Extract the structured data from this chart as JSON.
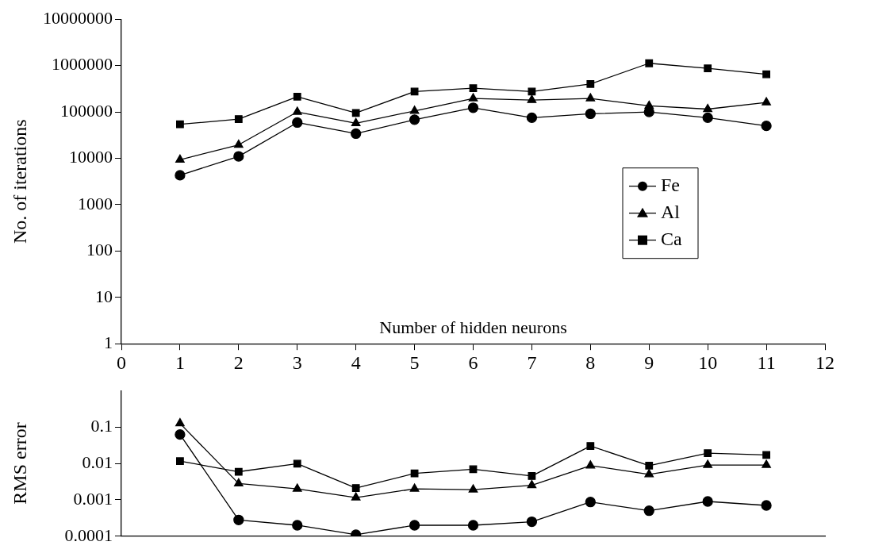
{
  "chart_data": [
    {
      "type": "line",
      "xlabel": "Number of hidden neurons",
      "ylabel": "No. of iterations",
      "x": [
        1,
        2,
        3,
        4,
        5,
        6,
        7,
        8,
        9,
        10,
        11
      ],
      "xlim": [
        0,
        12
      ],
      "xticks": [
        0,
        1,
        2,
        3,
        4,
        5,
        6,
        7,
        8,
        9,
        10,
        11,
        12
      ],
      "ylim": [
        1,
        10000000
      ],
      "yticks": [
        1,
        10,
        100,
        1000,
        10000,
        100000,
        1000000,
        10000000
      ],
      "log": "y",
      "grid": false,
      "legend": "right",
      "line_style": "solid",
      "series": [
        {
          "name": "Fe",
          "color": "#000000",
          "marker": "circle",
          "values": [
            4300,
            11000,
            59000,
            34000,
            68000,
            123000,
            75000,
            91000,
            100000,
            75000,
            50000
          ]
        },
        {
          "name": "Al",
          "color": "#000000",
          "marker": "triangle",
          "values": [
            9300,
            19500,
            100000,
            57000,
            105000,
            195000,
            180000,
            195000,
            135000,
            115000,
            160000
          ]
        },
        {
          "name": "Ca",
          "color": "#000000",
          "marker": "square",
          "values": [
            54000,
            70000,
            213000,
            95000,
            275000,
            325000,
            275000,
            400000,
            1120000,
            870000,
            650000
          ]
        }
      ]
    },
    {
      "type": "line",
      "ylabel": "RMS error",
      "x": [
        1,
        2,
        3,
        4,
        5,
        6,
        7,
        8,
        9,
        10,
        11
      ],
      "xlim": [
        0,
        12
      ],
      "ylim": [
        0.0001,
        1
      ],
      "yticks": [
        0.0001,
        0.001,
        0.01,
        0.1
      ],
      "log": "y",
      "grid": false,
      "tick_labels": "y",
      "line_style": "solid",
      "series": [
        {
          "color": "#000000",
          "marker": "circle",
          "values": [
            0.062,
            0.00028,
            0.0002,
            0.00011,
            0.0002,
            0.0002,
            0.00025,
            0.00087,
            0.0005,
            0.0009,
            0.0007
          ]
        },
        {
          "color": "#000000",
          "marker": "triangle",
          "values": [
            0.125,
            0.0028,
            0.002,
            0.00115,
            0.002,
            0.0019,
            0.0025,
            0.0087,
            0.005,
            0.009,
            0.009
          ]
        },
        {
          "color": "#000000",
          "marker": "square",
          "values": [
            0.0115,
            0.0059,
            0.0098,
            0.0021,
            0.0053,
            0.0069,
            0.0045,
            0.03,
            0.0087,
            0.019,
            0.017
          ]
        }
      ]
    }
  ]
}
